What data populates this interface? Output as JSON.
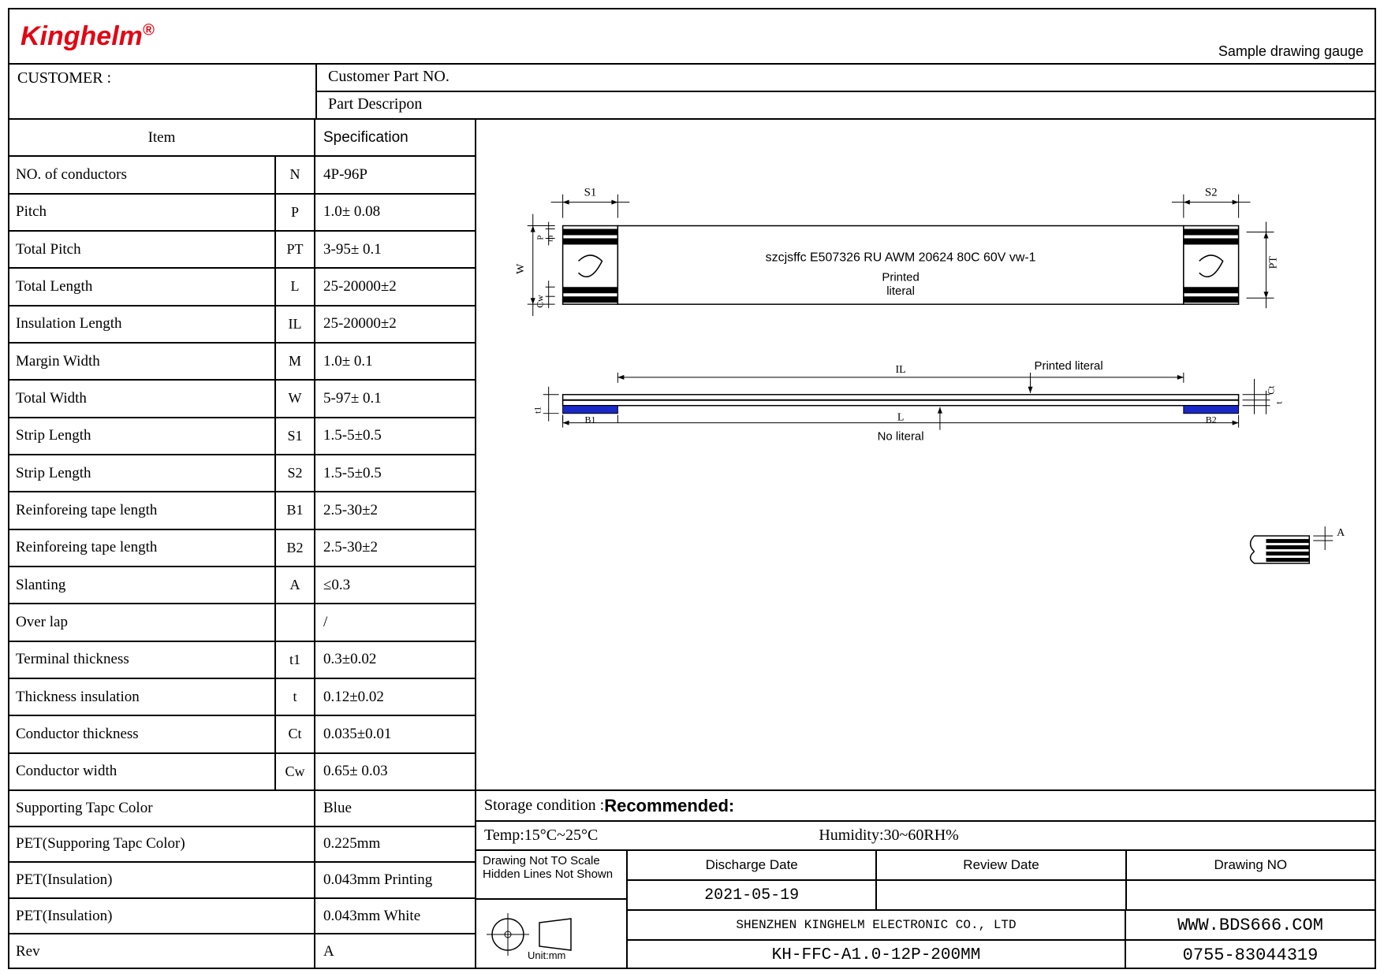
{
  "logo": "Kinghelm",
  "sample_gauge": "Sample drawing gauge",
  "customer_label": "CUSTOMER :",
  "customer_part_no_label": "Customer Part NO.",
  "part_desc_label": "Part Descripon",
  "spec_header": {
    "item": "Item",
    "spec": "Specification"
  },
  "spec_rows": [
    {
      "item": "NO. of conductors",
      "sym": "N",
      "val": "4P-96P"
    },
    {
      "item": "Pitch",
      "sym": "P",
      "val": "1.0± 0.08"
    },
    {
      "item": "Total Pitch",
      "sym": "PT",
      "val": "3-95± 0.1"
    },
    {
      "item": "Total Length",
      "sym": "L",
      "val": "25-20000±2"
    },
    {
      "item": "Insulation Length",
      "sym": "IL",
      "val": "25-20000±2"
    },
    {
      "item": "Margin Width",
      "sym": "M",
      "val": "1.0± 0.1"
    },
    {
      "item": "Total Width",
      "sym": "W",
      "val": "5-97± 0.1"
    },
    {
      "item": "Strip Length",
      "sym": "S1",
      "val": "1.5-5±0.5"
    },
    {
      "item": "Strip Length",
      "sym": "S2",
      "val": "1.5-5±0.5"
    },
    {
      "item": "Reinforeing tape length",
      "sym": "B1",
      "val": "2.5-30±2"
    },
    {
      "item": "Reinforeing tape length",
      "sym": "B2",
      "val": "2.5-30±2"
    },
    {
      "item": "Slanting",
      "sym": "A",
      "val": "≤0.3"
    },
    {
      "item": "Over lap",
      "sym": "",
      "val": "/"
    },
    {
      "item": "Terminal thickness",
      "sym": "t1",
      "val": "0.3±0.02"
    },
    {
      "item": "Thickness insulation",
      "sym": "t",
      "val": "0.12±0.02"
    },
    {
      "item": "Conductor thickness",
      "sym": "Ct",
      "val": "0.035±0.01"
    },
    {
      "item": "Conductor width",
      "sym": "Cw",
      "val": "0.65± 0.03"
    }
  ],
  "bottom_left_rows": [
    {
      "item": "Supporting Tapc Color",
      "val": "Blue"
    },
    {
      "item": "PET(Supporing Tapc Color)",
      "val": "0.225mm"
    },
    {
      "item": "PET(Insulation)",
      "val": "0.043mm Printing"
    },
    {
      "item": "PET(Insulation)",
      "val": "0.043mm White"
    },
    {
      "item": "Rev",
      "val": "A"
    }
  ],
  "storage_label": "Storage condition :",
  "storage_value": "Recommended:",
  "temp_label": "Temp:15°C~25°C",
  "humidity_label": "Humidity:30~60RH%",
  "drawing_not_to_scale": "Drawing Not TO Scale",
  "hidden_lines": "Hidden Lines Not Shown",
  "unit_label": "Unit:mm",
  "info_headers": {
    "discharge": "Discharge Date",
    "review": "Review Date",
    "drawing": "Drawing NO"
  },
  "discharge_date": "2021-05-19",
  "company": "SHENZHEN KINGHELM ELECTRONIC CO., LTD",
  "website": "WWW.BDS666.COM",
  "part_number": "KH-FFC-A1.0-12P-200MM",
  "phone": "0755-83044319",
  "diagram": {
    "cable_text": "szcjsffc E507326 RU AWM 20624 80C 60V vw-1",
    "printed_literal": "Printed",
    "literal": "literal",
    "printed_literal_side": "Printed literal",
    "no_literal": "No literal",
    "labels": {
      "S1": "S1",
      "S2": "S2",
      "P": "P",
      "m": "m",
      "W": "W",
      "Cw": "Cw",
      "PT": "PT",
      "IL": "IL",
      "L": "L",
      "B1": "B1",
      "B2": "B2",
      "t1": "t1",
      "t": "t",
      "Ct": "Ct",
      "A": "A"
    },
    "colors": {
      "stripe": "#000000",
      "reinforce": "#1a28c8",
      "outline": "#000000"
    }
  }
}
